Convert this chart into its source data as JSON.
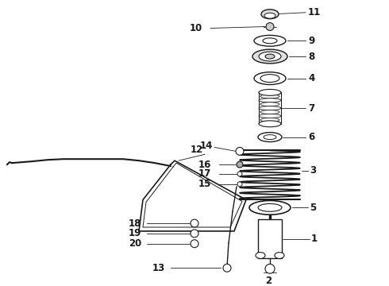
{
  "background": "#ffffff",
  "line_color": "#1a1a1a",
  "label_fontsize": 8.5,
  "figsize": [
    4.9,
    3.6
  ],
  "dpi": 100,
  "spring_color": "#333333",
  "gray": "#888888"
}
